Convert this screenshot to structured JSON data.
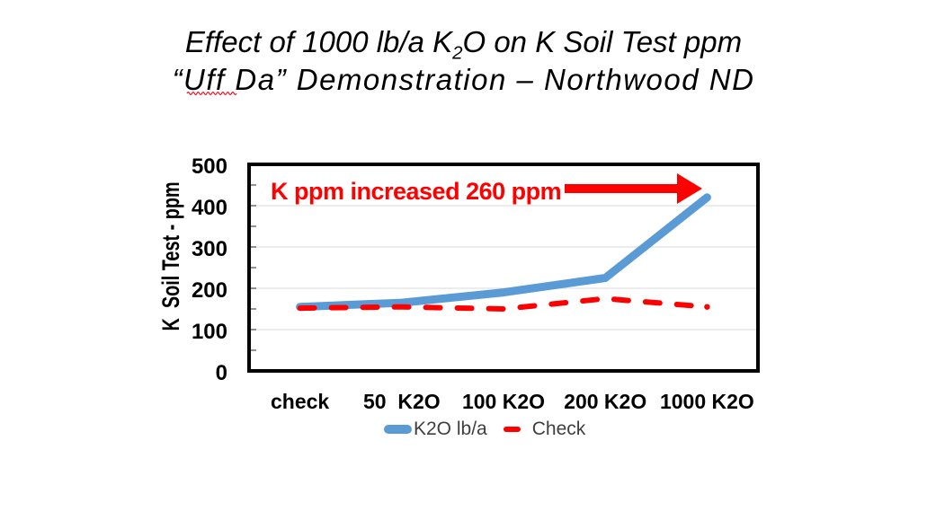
{
  "title": {
    "line1_pre": "Effect of 1000 lb/a K",
    "line1_sub": "2",
    "line1_post": "O on K Soil Test ppm",
    "line2": "“Uff Da” Demonstration – Northwood ND"
  },
  "annotation": {
    "text": "K ppm increased 260 ppm",
    "color": "#FF0000",
    "arrow_direction": "right"
  },
  "chart_data": {
    "type": "line",
    "categories": [
      "check",
      "50  K2O",
      "100 K2O",
      "200 K2O",
      "1000 K2O"
    ],
    "series": [
      {
        "name": "K2O lb/a",
        "color": "#5B9BD5",
        "style": "solid",
        "values": [
          155,
          165,
          190,
          225,
          420
        ]
      },
      {
        "name": "Check",
        "color": "#FF0000",
        "style": "dashed",
        "values": [
          152,
          155,
          150,
          175,
          155
        ]
      }
    ],
    "ylabel": "K  Soil Test - ppm",
    "ylim": [
      0,
      500
    ],
    "ytick_step": 100,
    "yticks": [
      "500",
      "400",
      "300",
      "200",
      "100",
      "0"
    ],
    "grid": "horizontal-major",
    "legend_position": "bottom",
    "gridline_color": "#E0E0E0"
  }
}
